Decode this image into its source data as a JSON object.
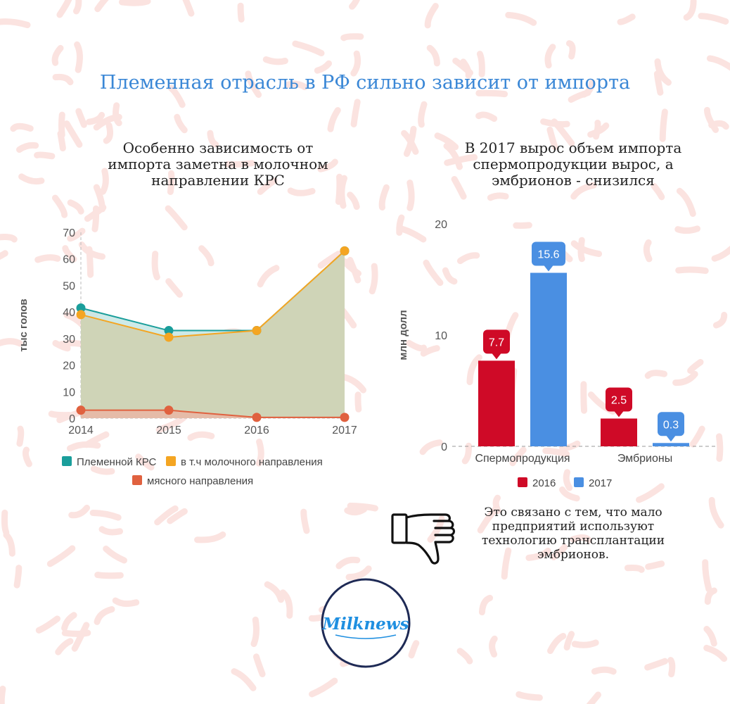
{
  "title": "Племенная отрасль в РФ сильно зависит от импорта",
  "left_subtitle": [
    "Особенно зависимость от",
    "импорта заметна в молочном",
    "направлении КРС"
  ],
  "right_subtitle": [
    "В 2017 вырос объем импорта",
    "спермопродукции вырос, а",
    "эмбрионов -  снизился"
  ],
  "note": [
    "Это связано с тем, что мало",
    "предприятий используют",
    "технологию трансплантации",
    "эмбрионов."
  ],
  "logo_text": "Milknews",
  "colors": {
    "title": "#3a87d6",
    "teal": "#1a9e9b",
    "orange": "#f4a522",
    "red_orange": "#e0613f",
    "bar_2016": "#cf0a27",
    "bar_2017": "#4a8fe2",
    "background_stroke": "#fbe3e0"
  },
  "chart_data": [
    {
      "type": "area",
      "title": "Особенно зависимость от импорта заметна в молочном направлении КРС",
      "ylabel": "тыс голов",
      "xlabel": "",
      "x": [
        "2014",
        "2015",
        "2016",
        "2017"
      ],
      "ylim": [
        0,
        70
      ],
      "yticks": [
        "0",
        "10",
        "20",
        "30",
        "40",
        "50",
        "60",
        "70"
      ],
      "series": [
        {
          "name": "Племенной КРС",
          "values": [
            41.5,
            33,
            33,
            63
          ],
          "color": "#1a9e9b"
        },
        {
          "name": "в т.ч молочного направления",
          "values": [
            39,
            30.5,
            33,
            63
          ],
          "color": "#f4a522"
        },
        {
          "name": "мясного направления",
          "values": [
            3,
            3,
            0.3,
            0.3
          ],
          "color": "#e0613f"
        }
      ],
      "legend": "bottom"
    },
    {
      "type": "bar",
      "title": "В 2017 вырос объем импорта спермопродукции вырос, а эмбрионов -  снизился",
      "ylabel": "млн долл",
      "categories": [
        "Спермопродукция",
        "Эмбрионы"
      ],
      "ylim": [
        0,
        20
      ],
      "yticks": [
        "0",
        "10",
        "20"
      ],
      "series": [
        {
          "name": "2016",
          "values": [
            7.7,
            2.5
          ],
          "labels": [
            "7.7",
            "2.5"
          ],
          "color": "#cf0a27"
        },
        {
          "name": "2017",
          "values": [
            15.6,
            0.3
          ],
          "labels": [
            "15.6",
            "0.3"
          ],
          "color": "#4a8fe2"
        }
      ],
      "legend": "bottom"
    }
  ]
}
